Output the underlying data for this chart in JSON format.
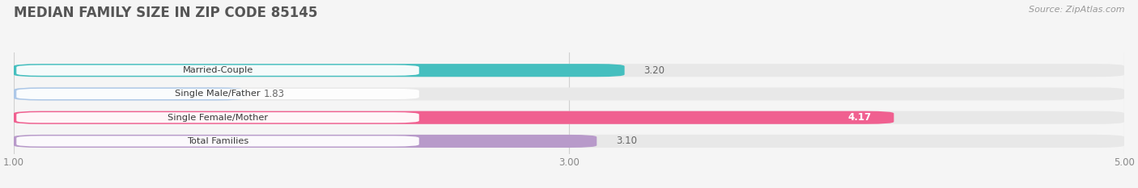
{
  "title": "MEDIAN FAMILY SIZE IN ZIP CODE 85145",
  "source": "Source: ZipAtlas.com",
  "categories": [
    "Married-Couple",
    "Single Male/Father",
    "Single Female/Mother",
    "Total Families"
  ],
  "values": [
    3.2,
    1.83,
    4.17,
    3.1
  ],
  "bar_colors": [
    "#45bfbf",
    "#adc8e8",
    "#f06090",
    "#b89aca"
  ],
  "bar_bg_color": "#e8e8e8",
  "label_bg_color": "#ffffff",
  "xlim": [
    1.0,
    5.0
  ],
  "xticks": [
    1.0,
    3.0,
    5.0
  ],
  "xtick_labels": [
    "1.00",
    "3.00",
    "5.00"
  ],
  "value_label_color": "#666666",
  "title_color": "#555555",
  "source_color": "#999999",
  "fig_bg_color": "#f5f5f5",
  "value_inside_idx": 2,
  "value_inside_color": "#ffffff"
}
